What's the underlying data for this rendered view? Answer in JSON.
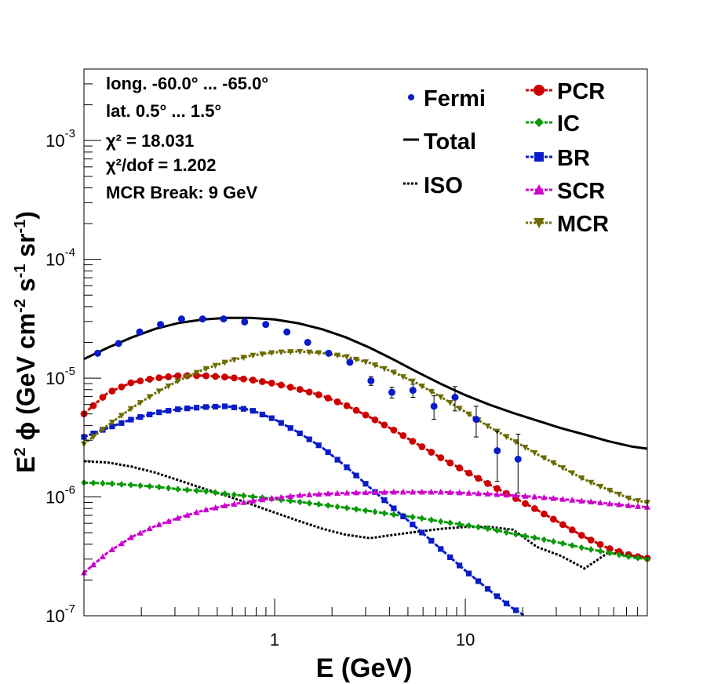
{
  "chart_data": {
    "type": "line",
    "xlabel": "E (GeV)",
    "ylabel": "E² ϕ (GeV cm⁻² s⁻¹ sr⁻¹)",
    "ylabel_parts": [
      "E",
      "2",
      " ϕ (GeV cm",
      "-2",
      " s",
      "-1",
      " sr",
      "-1",
      ")"
    ],
    "x_scale": "log",
    "y_scale": "log",
    "xlim": [
      0.1,
      90
    ],
    "ylim": [
      1e-07,
      0.004
    ],
    "x_ticks": [
      {
        "value": 1,
        "label": "1"
      },
      {
        "value": 10,
        "label": "10"
      }
    ],
    "y_ticks": [
      {
        "value": 1e-07,
        "base": "10",
        "exp": "-7"
      },
      {
        "value": 1e-06,
        "base": "10",
        "exp": "-6"
      },
      {
        "value": 1e-05,
        "base": "10",
        "exp": "-5"
      },
      {
        "value": 0.0001,
        "base": "10",
        "exp": "-4"
      },
      {
        "value": 0.001,
        "base": "10",
        "exp": "-3"
      }
    ],
    "grid": false,
    "legend_position": "top-right",
    "info_text": [
      "long. -60.0° ... -65.0°",
      "lat. 0.5° ... 1.5°",
      "χ² = 18.031",
      "χ²/dof = 1.202",
      "MCR Break:  9 GeV"
    ],
    "data_points": {
      "name": "Fermi",
      "color": "#0a1cc8",
      "x": [
        0.118,
        0.152,
        0.196,
        0.252,
        0.325,
        0.419,
        0.54,
        0.696,
        0.898,
        1.16,
        1.49,
        1.92,
        2.48,
        3.2,
        4.12,
        5.31,
        6.85,
        8.83,
        11.4,
        14.7,
        18.9,
        24.4,
        31.4,
        40.5,
        52.2,
        67.3,
        86.8
      ],
      "y": [
        1.62e-05,
        1.96e-05,
        2.45e-05,
        2.83e-05,
        3.15e-05,
        3.15e-05,
        3.15e-05,
        2.97e-05,
        2.83e-05,
        2.45e-05,
        2e-05,
        1.62e-05,
        1.36e-05,
        9.5e-06,
        7.6e-06,
        7.9e-06,
        5.8e-06,
        6.9e-06,
        4.5e-06,
        2.45e-06,
        2.08e-06,
        null,
        null,
        null,
        null,
        null,
        null
      ],
      "y_err": [
        0,
        0,
        0,
        0,
        0,
        0,
        0,
        0,
        0,
        0,
        0,
        0,
        0,
        0,
        0,
        0,
        0,
        0,
        0,
        0,
        0,
        null,
        null,
        null,
        null,
        null,
        null
      ]
    },
    "fermi_points": [
      {
        "x": 0.118,
        "y": 1.62e-05,
        "err_lo": 0,
        "err_hi": 0
      },
      {
        "x": 0.152,
        "y": 1.96e-05,
        "err_lo": 0,
        "err_hi": 0
      },
      {
        "x": 0.196,
        "y": 2.45e-05,
        "err_lo": 0,
        "err_hi": 0
      },
      {
        "x": 0.252,
        "y": 2.83e-05,
        "err_lo": 0,
        "err_hi": 0
      },
      {
        "x": 0.325,
        "y": 3.15e-05,
        "err_lo": 0,
        "err_hi": 0
      },
      {
        "x": 0.419,
        "y": 3.15e-05,
        "err_lo": 0,
        "err_hi": 0
      },
      {
        "x": 0.54,
        "y": 3.15e-05,
        "err_lo": 0,
        "err_hi": 0
      },
      {
        "x": 0.696,
        "y": 2.97e-05,
        "err_lo": 0,
        "err_hi": 0
      },
      {
        "x": 0.898,
        "y": 2.83e-05,
        "err_lo": 0,
        "err_hi": 0
      },
      {
        "x": 1.16,
        "y": 2.45e-05,
        "err_lo": 0,
        "err_hi": 0
      },
      {
        "x": 1.49,
        "y": 2e-05,
        "err_lo": 0,
        "err_hi": 0
      },
      {
        "x": 1.92,
        "y": 1.62e-05,
        "err_lo": 0,
        "err_hi": 0
      },
      {
        "x": 2.48,
        "y": 1.36e-05,
        "err_lo": 0,
        "err_hi": 0
      },
      {
        "x": 3.2,
        "y": 9.5e-06,
        "err_lo": 8e-07,
        "err_hi": 8e-07
      },
      {
        "x": 4.12,
        "y": 7.6e-06,
        "err_lo": 8e-07,
        "err_hi": 8e-07
      },
      {
        "x": 5.31,
        "y": 7.9e-06,
        "err_lo": 1e-06,
        "err_hi": 1e-06
      },
      {
        "x": 6.85,
        "y": 5.8e-06,
        "err_lo": 1.3e-06,
        "err_hi": 1.3e-06
      },
      {
        "x": 8.83,
        "y": 6.9e-06,
        "err_lo": 1.6e-06,
        "err_hi": 1.6e-06
      },
      {
        "x": 11.4,
        "y": 4.5e-06,
        "err_lo": 1.3e-06,
        "err_hi": 1.3e-06
      },
      {
        "x": 14.7,
        "y": 2.45e-06,
        "err_lo": 1.1e-06,
        "err_hi": 1.1e-06
      },
      {
        "x": 18.9,
        "y": 2.08e-06,
        "err_lo": 1e-06,
        "err_hi": 1.3e-06
      }
    ],
    "series": [
      {
        "name": "Total",
        "style": "solid",
        "marker": "none",
        "color": "#000000",
        "x": [
          0.1,
          0.133,
          0.178,
          0.237,
          0.316,
          0.422,
          0.562,
          0.75,
          1.0,
          1.33,
          1.78,
          2.37,
          3.16,
          4.22,
          5.62,
          7.5,
          10,
          13.3,
          17.8,
          23.7,
          31.6,
          42.2,
          56.2,
          75,
          90
        ],
        "y": [
          1.45e-05,
          1.8e-05,
          2.2e-05,
          2.6e-05,
          2.92e-05,
          3.12e-05,
          3.22e-05,
          3.22e-05,
          3.12e-05,
          2.9e-05,
          2.58e-05,
          2.2e-05,
          1.8e-05,
          1.43e-05,
          1.12e-05,
          8.9e-06,
          7.2e-06,
          6e-06,
          5.1e-06,
          4.4e-06,
          3.8e-06,
          3.35e-06,
          2.95e-06,
          2.65e-06,
          2.55e-06
        ]
      },
      {
        "name": "ISO",
        "style": "dotted",
        "marker": "none",
        "color": "#000000",
        "x": [
          0.1,
          0.133,
          0.178,
          0.237,
          0.316,
          0.422,
          0.562,
          0.75,
          1.0,
          1.33,
          1.78,
          2.37,
          3.16,
          4.22,
          5.62,
          7.5,
          10,
          13.3,
          17.8,
          23.7,
          31.6,
          42.2,
          56.2,
          75,
          90
        ],
        "y": [
          2e-06,
          1.95e-06,
          1.8e-06,
          1.6e-06,
          1.38e-06,
          1.18e-06,
          1.02e-06,
          8.7e-07,
          7.4e-07,
          6.3e-07,
          5.4e-07,
          4.8e-07,
          4.5e-07,
          4.8e-07,
          5.1e-07,
          5.4e-07,
          5.6e-07,
          5.6e-07,
          5.3e-07,
          3.8e-07,
          3.2e-07,
          2.5e-07,
          3.4e-07,
          3.2e-07,
          3.1e-07
        ]
      },
      {
        "name": "PCR",
        "style": "dashed",
        "marker": "circle",
        "color": "#cc0000",
        "x": [
          0.1,
          0.133,
          0.178,
          0.237,
          0.316,
          0.422,
          0.562,
          0.75,
          1.0,
          1.33,
          1.78,
          2.37,
          3.16,
          4.22,
          5.62,
          7.5,
          10,
          13.3,
          17.8,
          23.7,
          31.6,
          42.2,
          56.2,
          75,
          90
        ],
        "y": [
          5e-06,
          7.5e-06,
          9.2e-06,
          1e-05,
          1.05e-05,
          1.05e-05,
          1.02e-05,
          9.7e-06,
          9e-06,
          8.1e-06,
          7.1e-06,
          5.9e-06,
          4.7e-06,
          3.65e-06,
          2.78e-06,
          2.12e-06,
          1.65e-06,
          1.28e-06,
          1e-06,
          7.8e-07,
          6e-07,
          4.6e-07,
          3.7e-07,
          3.2e-07,
          3.05e-07
        ]
      },
      {
        "name": "IC",
        "style": "dashed",
        "marker": "diamond",
        "color": "#0a9a0a",
        "x": [
          0.1,
          0.133,
          0.178,
          0.237,
          0.316,
          0.422,
          0.562,
          0.75,
          1.0,
          1.33,
          1.78,
          2.37,
          3.16,
          4.22,
          5.62,
          7.5,
          10,
          13.3,
          17.8,
          23.7,
          31.6,
          42.2,
          56.2,
          75,
          90
        ],
        "y": [
          1.32e-06,
          1.3e-06,
          1.26e-06,
          1.22e-06,
          1.16e-06,
          1.12e-06,
          1.06e-06,
          1.01e-06,
          9.6e-07,
          9.1e-07,
          8.6e-07,
          8.1e-07,
          7.6e-07,
          7.1e-07,
          6.7e-07,
          6.2e-07,
          5.8e-07,
          5.4e-07,
          4.9e-07,
          4.5e-07,
          4.1e-07,
          3.7e-07,
          3.4e-07,
          3.1e-07,
          3e-07
        ]
      },
      {
        "name": "BR",
        "style": "dashed",
        "marker": "square",
        "color": "#0a1cc8",
        "x": [
          0.1,
          0.133,
          0.178,
          0.237,
          0.316,
          0.422,
          0.562,
          0.75,
          1.0,
          1.33,
          1.78,
          2.37,
          3.16,
          4.22,
          5.62,
          7.5,
          10,
          13.3,
          17.8,
          20.5
        ],
        "y": [
          3.2e-06,
          3.8e-06,
          4.5e-06,
          5.1e-06,
          5.5e-06,
          5.7e-06,
          5.8e-06,
          5.4e-06,
          4.5e-06,
          3.5e-06,
          2.6e-06,
          1.8e-06,
          1.2e-06,
          8e-07,
          5.4e-07,
          3.6e-07,
          2.4e-07,
          1.65e-07,
          1.15e-07,
          1e-07
        ]
      },
      {
        "name": "SCR",
        "style": "dashed",
        "marker": "triangle-up",
        "color": "#cc00cc",
        "x": [
          0.1,
          0.133,
          0.178,
          0.237,
          0.316,
          0.422,
          0.562,
          0.75,
          1.0,
          1.33,
          1.78,
          2.37,
          3.16,
          4.22,
          5.62,
          7.5,
          10,
          13.3,
          17.8,
          23.7,
          31.6,
          42.2,
          56.2,
          75,
          90
        ],
        "y": [
          2.3e-07,
          3.4e-07,
          4.6e-07,
          5.7e-07,
          6.7e-07,
          7.7e-07,
          8.5e-07,
          9.2e-07,
          9.8e-07,
          1.03e-06,
          1.06e-06,
          1.08e-06,
          1.09e-06,
          1.1e-06,
          1.1e-06,
          1.1e-06,
          1.08e-06,
          1.06e-06,
          1.03e-06,
          1e-06,
          9.6e-07,
          9.2e-07,
          8.8e-07,
          8.4e-07,
          8.2e-07
        ]
      },
      {
        "name": "MCR",
        "style": "dotted",
        "marker": "triangle-down",
        "color": "#6b6b00",
        "x": [
          0.1,
          0.133,
          0.178,
          0.237,
          0.316,
          0.422,
          0.562,
          0.75,
          1.0,
          1.33,
          1.78,
          2.37,
          3.16,
          4.22,
          5.62,
          7.5,
          10,
          13.3,
          17.8,
          23.7,
          31.6,
          42.2,
          56.2,
          75,
          90
        ],
        "y": [
          2.8e-06,
          4e-06,
          5.6e-06,
          7.5e-06,
          9.6e-06,
          1.18e-05,
          1.38e-05,
          1.55e-05,
          1.65e-05,
          1.68e-05,
          1.63e-05,
          1.52e-05,
          1.34e-05,
          1.12e-05,
          9e-06,
          6.9e-06,
          5.2e-06,
          3.9e-06,
          3e-06,
          2.3e-06,
          1.8e-06,
          1.4e-06,
          1.15e-06,
          9.5e-07,
          9e-07
        ]
      }
    ],
    "legend_left": [
      {
        "name": "Fermi",
        "symbol": "dot",
        "color": "#0a1cc8"
      },
      {
        "name": "Total",
        "symbol": "solid",
        "color": "#000000"
      },
      {
        "name": "ISO",
        "symbol": "dotted",
        "color": "#000000"
      }
    ],
    "legend_right": [
      {
        "name": "PCR",
        "symbol": "circle",
        "color": "#cc0000"
      },
      {
        "name": "IC",
        "symbol": "diamond",
        "color": "#0a9a0a"
      },
      {
        "name": "BR",
        "symbol": "square",
        "color": "#0a1cc8"
      },
      {
        "name": "SCR",
        "symbol": "triangle-up",
        "color": "#cc00cc"
      },
      {
        "name": "MCR",
        "symbol": "triangle-down",
        "color": "#6b6b00"
      }
    ]
  }
}
